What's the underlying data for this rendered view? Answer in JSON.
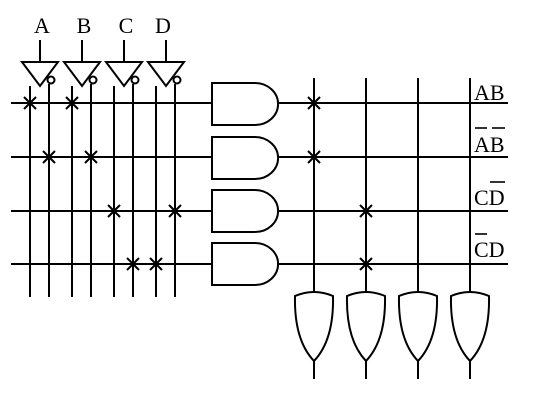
{
  "inputs": [
    "A",
    "B",
    "C",
    "D"
  ],
  "outputs": [
    {
      "prefix": "AB",
      "overline": ""
    },
    {
      "prefix": "",
      "overline": "AB"
    },
    {
      "prefix": "C",
      "overline": "D"
    },
    {
      "prefix": "",
      "overline": "CD"
    }
  ]
}
